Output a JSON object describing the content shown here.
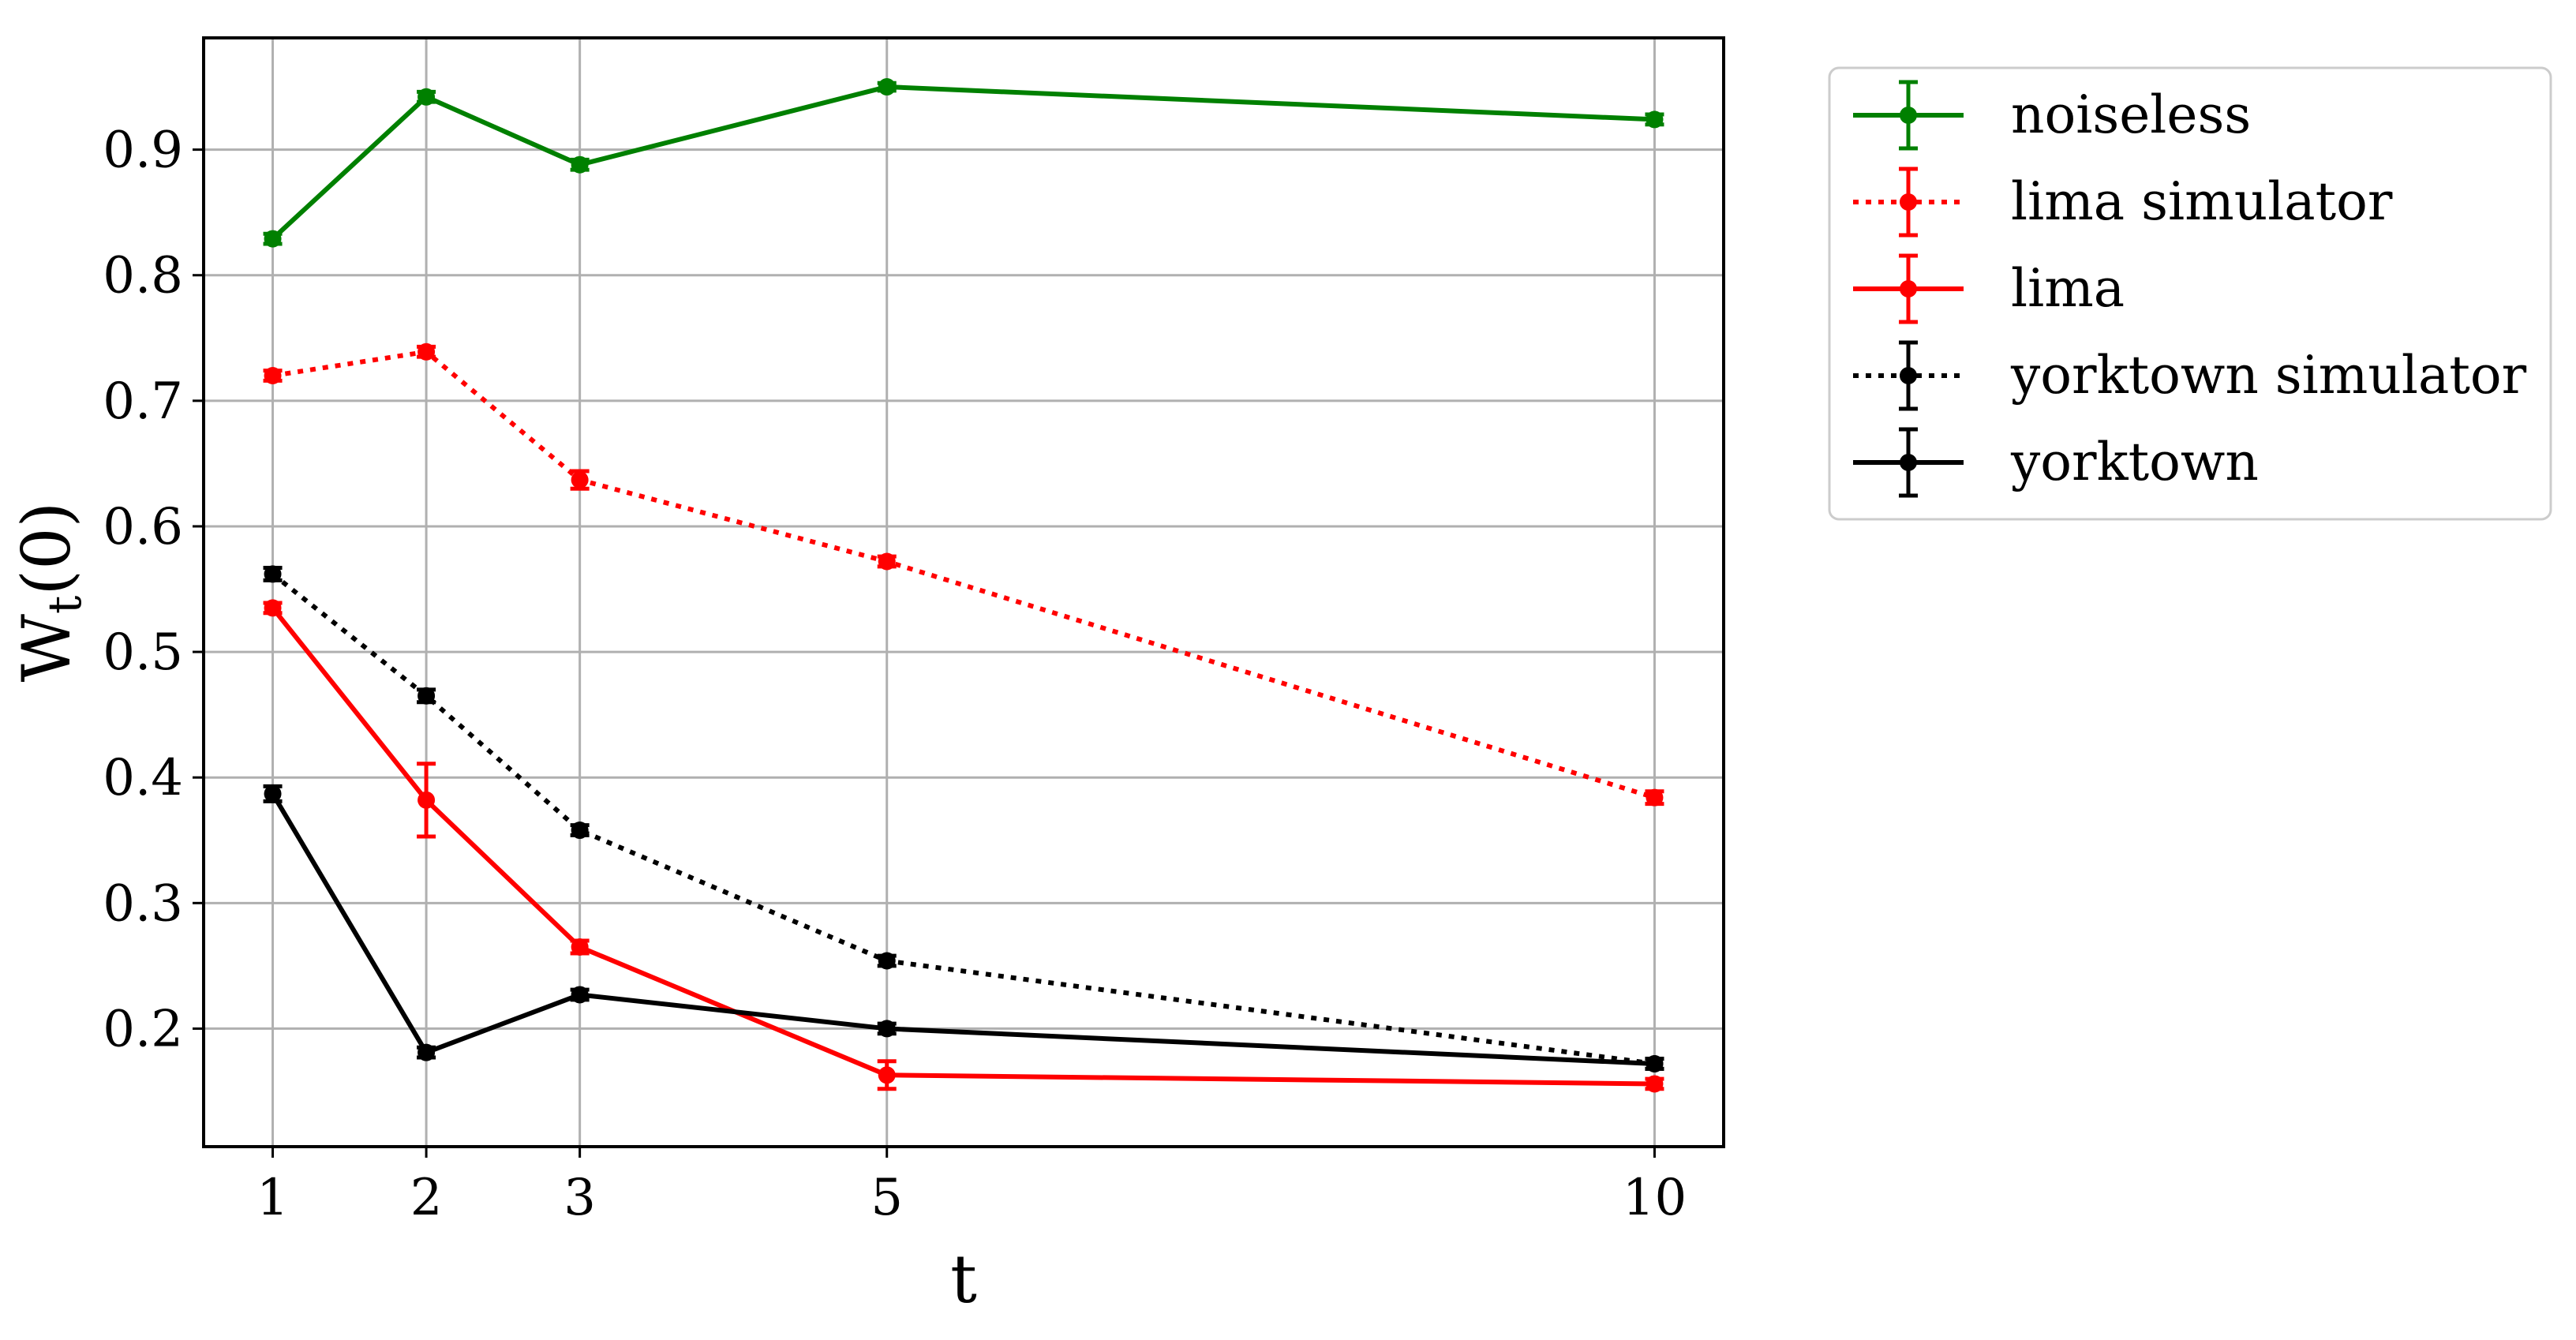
{
  "chart_data": {
    "type": "line",
    "xlabel": "t",
    "ylabel": "W",
    "ylabel_subscript": "t",
    "ylabel_suffix": "(0)",
    "x": [
      1,
      2,
      3,
      5,
      10
    ],
    "xlim": [
      0.55,
      10.45
    ],
    "ylim": [
      0.106,
      0.989
    ],
    "x_ticks": [
      1,
      2,
      3,
      5,
      10
    ],
    "y_ticks": [
      0.2,
      0.3,
      0.4,
      0.5,
      0.6,
      0.7,
      0.8,
      0.9
    ],
    "grid": true,
    "legend_position": "outside-right-top",
    "series": [
      {
        "name": "noiseless",
        "color": "#008000",
        "dash": "solid",
        "values": [
          0.829,
          0.942,
          0.888,
          0.95,
          0.924
        ],
        "errors": [
          0.004,
          0.004,
          0.004,
          0.003,
          0.004
        ]
      },
      {
        "name": "lima simulator",
        "color": "#ff0000",
        "dash": "dotted",
        "values": [
          0.72,
          0.739,
          0.637,
          0.572,
          0.384
        ],
        "errors": [
          0.004,
          0.004,
          0.007,
          0.004,
          0.005
        ]
      },
      {
        "name": "lima",
        "color": "#ff0000",
        "dash": "solid",
        "values": [
          0.535,
          0.382,
          0.265,
          0.163,
          0.156
        ],
        "errors": [
          0.004,
          0.029,
          0.005,
          0.011,
          0.004
        ]
      },
      {
        "name": "yorktown simulator",
        "color": "#000000",
        "dash": "dotted",
        "values": [
          0.562,
          0.465,
          0.358,
          0.254,
          0.172
        ],
        "errors": [
          0.005,
          0.005,
          0.004,
          0.004,
          0.004
        ]
      },
      {
        "name": "yorktown",
        "color": "#000000",
        "dash": "solid",
        "values": [
          0.387,
          0.181,
          0.227,
          0.2,
          0.172
        ],
        "errors": [
          0.006,
          0.004,
          0.004,
          0.004,
          0.004
        ]
      }
    ]
  }
}
